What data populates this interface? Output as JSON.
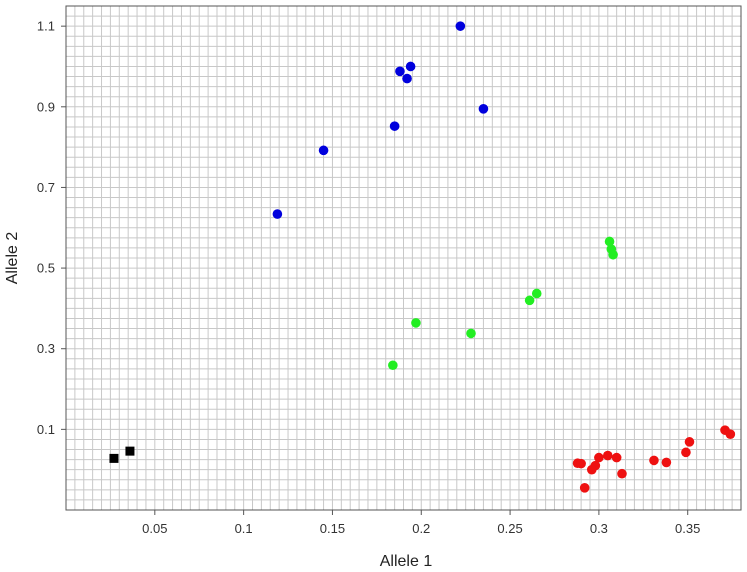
{
  "chart_data": {
    "type": "scatter",
    "title": "",
    "xlabel": "Allele 1",
    "ylabel": "Allele 2",
    "xlim": [
      0.0,
      0.38
    ],
    "ylim": [
      -0.1,
      1.15
    ],
    "grid": true,
    "x_ticks": [
      0.05,
      0.1,
      0.15,
      0.2,
      0.25,
      0.3,
      0.35
    ],
    "x_tick_labels": [
      "0.05",
      "0.1",
      "0.15",
      "0.2",
      "0.25",
      "0.3",
      "0.35"
    ],
    "y_ticks": [
      0.1,
      0.3,
      0.5,
      0.7,
      0.9,
      1.1
    ],
    "y_tick_labels": [
      "0.1",
      "0.3",
      "0.5",
      "0.7",
      "0.9",
      "1.1"
    ],
    "series": [
      {
        "color": "#0000dd",
        "marker": "circle",
        "points": [
          {
            "x": 0.222,
            "y": 1.1
          },
          {
            "x": 0.194,
            "y": 1.0
          },
          {
            "x": 0.188,
            "y": 0.988
          },
          {
            "x": 0.192,
            "y": 0.97
          },
          {
            "x": 0.235,
            "y": 0.895
          },
          {
            "x": 0.185,
            "y": 0.852
          },
          {
            "x": 0.145,
            "y": 0.792
          },
          {
            "x": 0.119,
            "y": 0.634
          }
        ]
      },
      {
        "color": "#22ee22",
        "marker": "circle",
        "points": [
          {
            "x": 0.306,
            "y": 0.566
          },
          {
            "x": 0.307,
            "y": 0.547
          },
          {
            "x": 0.308,
            "y": 0.533
          },
          {
            "x": 0.265,
            "y": 0.437
          },
          {
            "x": 0.261,
            "y": 0.42
          },
          {
            "x": 0.197,
            "y": 0.364
          },
          {
            "x": 0.228,
            "y": 0.338
          },
          {
            "x": 0.184,
            "y": 0.259
          }
        ]
      },
      {
        "color": "#ee1111",
        "marker": "circle",
        "points": [
          {
            "x": 0.371,
            "y": 0.098
          },
          {
            "x": 0.374,
            "y": 0.088
          },
          {
            "x": 0.351,
            "y": 0.069
          },
          {
            "x": 0.349,
            "y": 0.043
          },
          {
            "x": 0.305,
            "y": 0.035
          },
          {
            "x": 0.31,
            "y": 0.03
          },
          {
            "x": 0.3,
            "y": 0.03
          },
          {
            "x": 0.331,
            "y": 0.023
          },
          {
            "x": 0.338,
            "y": 0.018
          },
          {
            "x": 0.288,
            "y": 0.016
          },
          {
            "x": 0.29,
            "y": 0.015
          },
          {
            "x": 0.298,
            "y": 0.01
          },
          {
            "x": 0.296,
            "y": 0.0
          },
          {
            "x": 0.313,
            "y": -0.01
          },
          {
            "x": 0.292,
            "y": -0.045
          }
        ]
      },
      {
        "color": "#000000",
        "marker": "square",
        "points": [
          {
            "x": 0.036,
            "y": 0.046
          },
          {
            "x": 0.027,
            "y": 0.028
          }
        ]
      }
    ]
  }
}
